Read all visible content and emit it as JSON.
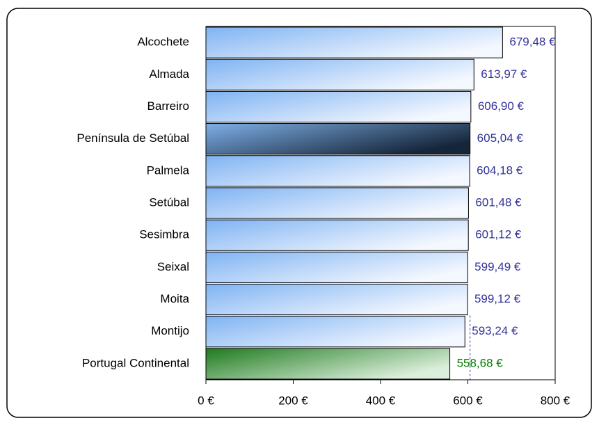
{
  "chart_data": {
    "type": "bar",
    "orientation": "horizontal",
    "categories": [
      "Alcochete",
      "Almada",
      "Barreiro",
      "Península de Setúbal",
      "Palmela",
      "Setúbal",
      "Sesimbra",
      "Seixal",
      "Moita",
      "Montijo",
      "Portugal Continental"
    ],
    "values": [
      679.48,
      613.97,
      606.9,
      605.04,
      604.18,
      601.48,
      601.12,
      599.49,
      599.12,
      593.24,
      558.68
    ],
    "value_labels": [
      "679,48 €",
      "613,97 €",
      "606,90 €",
      "605,04 €",
      "604,18 €",
      "601,48 €",
      "601,12 €",
      "599,49 €",
      "599,12 €",
      "593,24 €",
      "558,68 €"
    ],
    "gradients": [
      [
        "#7fb3f2",
        "#f4f8ff"
      ],
      [
        "#7fb3f2",
        "#f4f8ff"
      ],
      [
        "#7fb3f2",
        "#f4f8ff"
      ],
      [
        "#7fb0e8",
        "#16263a"
      ],
      [
        "#7fb3f2",
        "#f4f8ff"
      ],
      [
        "#7fb3f2",
        "#f4f8ff"
      ],
      [
        "#7fb3f2",
        "#f4f8ff"
      ],
      [
        "#7fb3f2",
        "#f4f8ff"
      ],
      [
        "#7fb3f2",
        "#f4f8ff"
      ],
      [
        "#7fb3f2",
        "#f4f8ff"
      ],
      [
        "#1e7a1e",
        "#dcefdc"
      ]
    ],
    "label_colors": [
      "#333399",
      "#333399",
      "#333399",
      "#333399",
      "#333399",
      "#333399",
      "#333399",
      "#333399",
      "#333399",
      "#333399",
      "#008000"
    ],
    "xlim": [
      0,
      800
    ],
    "xticks": [
      {
        "value": 0,
        "label": "0 €"
      },
      {
        "value": 200,
        "label": "200 €"
      },
      {
        "value": 400,
        "label": "400 €"
      },
      {
        "value": 600,
        "label": "600 €"
      },
      {
        "value": 800,
        "label": "800 €"
      }
    ],
    "reference_line": 605.04
  }
}
